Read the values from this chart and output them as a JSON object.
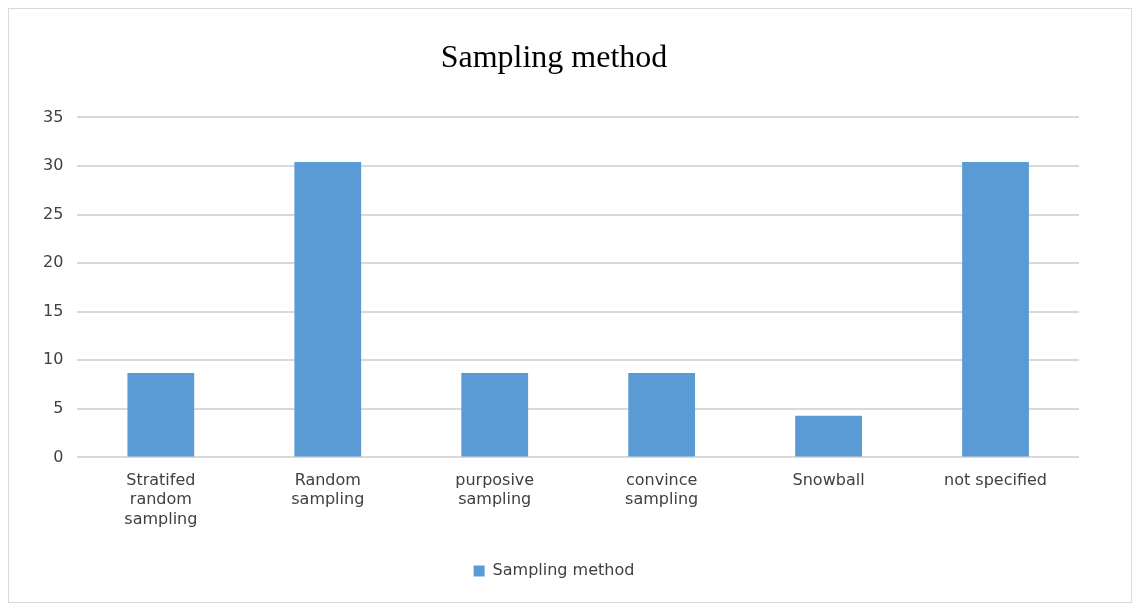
{
  "chart_data": {
    "type": "bar",
    "title": "Sampling method",
    "categories": [
      "Stratifed random sampling",
      "Random sampling",
      "purposive sampling",
      "convince sampling",
      "Snowball",
      "not specified"
    ],
    "series": [
      {
        "name": "Sampling method",
        "color": "#5b9bd5",
        "values": [
          8.7,
          30.4,
          8.7,
          8.7,
          4.3,
          30.4
        ]
      }
    ],
    "ylim": [
      0,
      35
    ],
    "yticks": [
      0,
      5,
      10,
      15,
      20,
      25,
      30,
      35
    ],
    "grid": "y",
    "legend": "bottom"
  }
}
